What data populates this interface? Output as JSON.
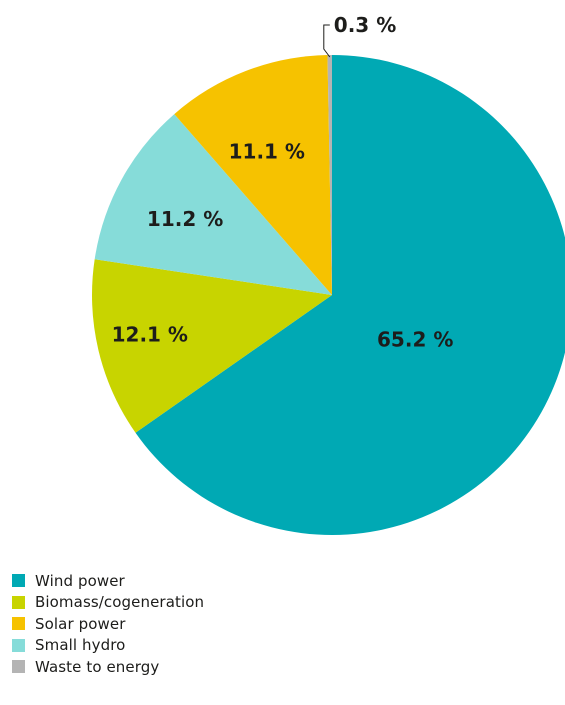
{
  "chart_data": {
    "type": "pie",
    "slices": [
      {
        "name": "Wind power",
        "value": 65.2,
        "label": "65.2 %",
        "color": "#00a9b4"
      },
      {
        "name": "Biomass/cogeneration",
        "value": 12.1,
        "label": "12.1 %",
        "color": "#c8d400"
      },
      {
        "name": "Small hydro",
        "value": 11.2,
        "label": "11.2 %",
        "color": "#86dcd9"
      },
      {
        "name": "Solar power",
        "value": 11.1,
        "label": "11.1 %",
        "color": "#f6c200"
      },
      {
        "name": "Waste to energy",
        "value": 0.3,
        "label": "0.3 %",
        "color": "#b4b4b4"
      }
    ],
    "legend": [
      {
        "label": "Wind power",
        "color": "#00a9b4"
      },
      {
        "label": "Biomass/cogeneration",
        "color": "#c8d400"
      },
      {
        "label": "Solar power",
        "color": "#f6c200"
      },
      {
        "label": "Small hydro",
        "color": "#86dcd9"
      },
      {
        "label": "Waste to energy",
        "color": "#b4b4b4"
      }
    ],
    "legend_position": "bottom-left",
    "start_angle": "12 o'clock",
    "direction": "clockwise"
  }
}
